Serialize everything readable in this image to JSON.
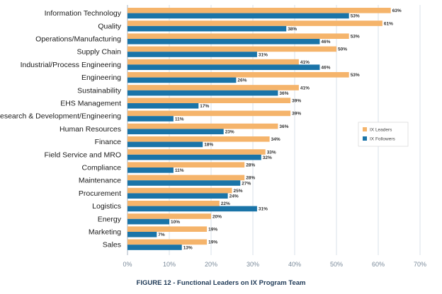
{
  "chart_data": {
    "type": "bar",
    "orientation": "horizontal",
    "title": "FIGURE 12 - Functional Leaders on IX Program Team",
    "categories": [
      "Information Technology",
      "Quality",
      "Operations/Manufacturing",
      "Supply Chain",
      "Industrial/Process Engineering",
      "Engineering",
      "Sustainability",
      "EHS Management",
      "Research & Development/Engineering",
      "Human Resources",
      "Finance",
      "Field Service and MRO",
      "Compliance",
      "Maintenance",
      "Procurement",
      "Logistics",
      "Energy",
      "Marketing",
      "Sales"
    ],
    "series": [
      {
        "name": "IX Leaders",
        "color": "#F5B46B",
        "values": [
          63,
          61,
          53,
          50,
          41,
          53,
          41,
          39,
          39,
          36,
          34,
          33,
          28,
          28,
          25,
          22,
          20,
          19,
          19
        ],
        "labels": [
          "63%",
          "61%",
          "53%",
          "50%",
          "41%",
          "53%",
          "41%",
          "39%",
          "39%",
          "36%",
          "34%",
          "33%",
          "28%",
          "28%",
          "25%",
          "22%",
          "20%",
          "19%",
          "19%"
        ]
      },
      {
        "name": "IX Followers",
        "color": "#1A74A8",
        "values": [
          53,
          38,
          46,
          31,
          46,
          26,
          36,
          17,
          11,
          23,
          18,
          32,
          11,
          27,
          24,
          31,
          10,
          7,
          13
        ],
        "labels": [
          "53%",
          "38%",
          "46%",
          "31%",
          "46%",
          "26%",
          "36%",
          "17%",
          "11%",
          "23%",
          "18%",
          "32%",
          "11%",
          "27%",
          "24%",
          "31%",
          "10%",
          "7%",
          "13%"
        ]
      }
    ],
    "xlim": [
      0,
      70
    ],
    "xticks": [
      "0%",
      "10%",
      "20%",
      "30%",
      "40%",
      "50%",
      "60%",
      "70%"
    ],
    "grid": true,
    "legend_position": "right"
  }
}
